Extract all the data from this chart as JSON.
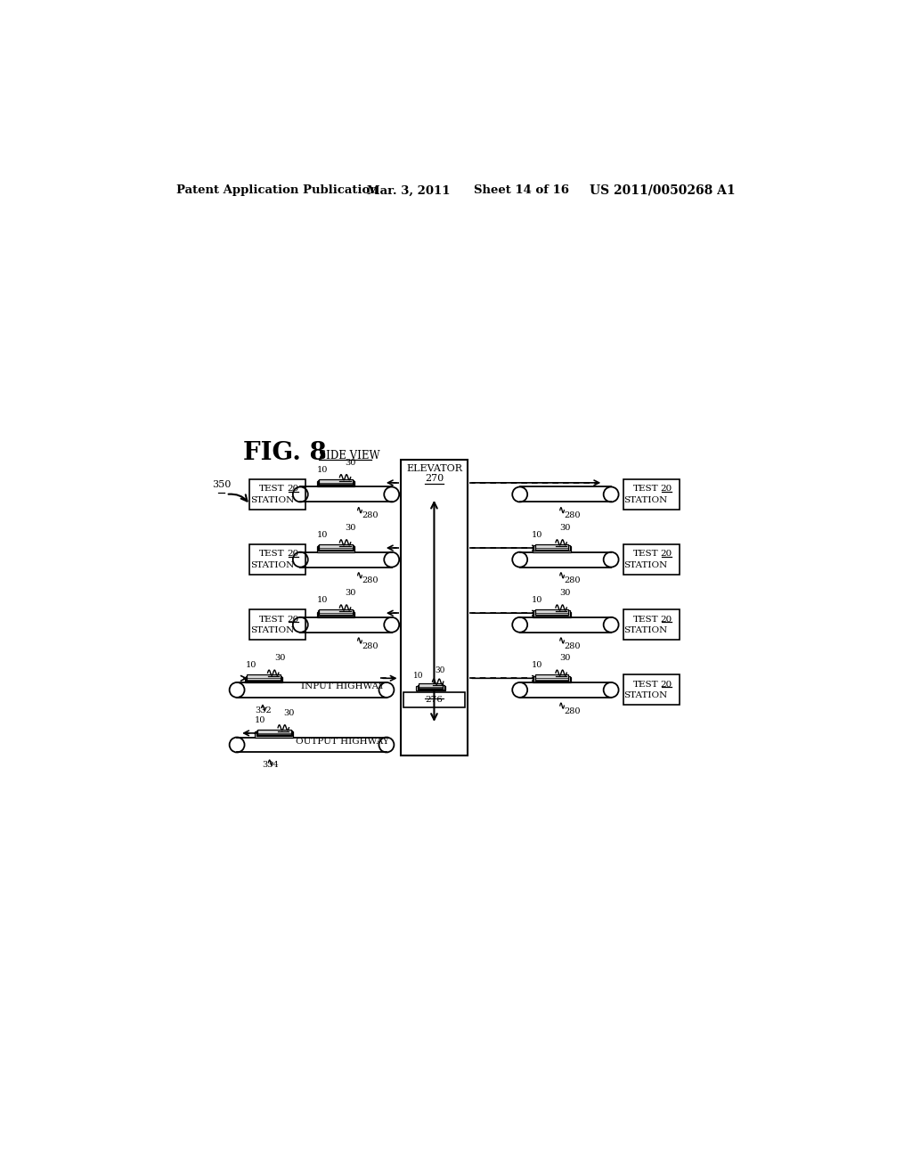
{
  "title_header": "Patent Application Publication",
  "date_header": "Mar. 3, 2011",
  "sheet_header": "Sheet 14 of 16",
  "patent_header": "US 2011/0050268 A1",
  "fig_label": "FIG. 8",
  "side_view_label": "SIDE VIEW",
  "elevator_label": "ELEVATOR",
  "elevator_num": "270",
  "elevator_platform_num": "276",
  "input_highway_label": "INPUT HIGHWAY",
  "output_highway_label": "OUTPUT HIGHWAY",
  "ref_350": "350",
  "ref_332": "332",
  "ref_334": "334",
  "bg_color": "#ffffff"
}
